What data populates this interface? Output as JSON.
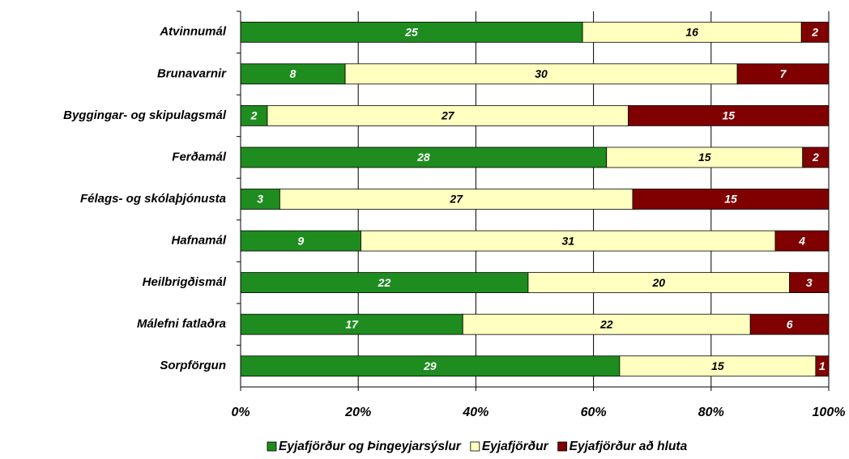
{
  "chart_data": {
    "type": "bar",
    "orientation": "horizontal",
    "stacking": "percent",
    "categories": [
      "Atvinnumál",
      "Brunavarnir",
      "Byggingar- og skipulagsmál",
      "Ferðamál",
      "Félags- og skólaþjónusta",
      "Hafnamál",
      "Heilbrigðismál",
      "Málefni fatlaðra",
      "Sorpförgun"
    ],
    "series": [
      {
        "name": "Eyjafjörður og Þingeyjarsýslur",
        "color": "#1e8c1e",
        "label_color": "#ffffff",
        "values": [
          25,
          8,
          2,
          28,
          3,
          9,
          22,
          17,
          29
        ]
      },
      {
        "name": "Eyjafjörður",
        "color": "#ffffc0",
        "label_color": "#000000",
        "values": [
          16,
          30,
          27,
          15,
          27,
          31,
          20,
          22,
          15
        ]
      },
      {
        "name": "Eyjafjörður að hluta",
        "color": "#800000",
        "label_color": "#ffffff",
        "values": [
          2,
          7,
          15,
          2,
          15,
          4,
          3,
          6,
          1
        ]
      }
    ],
    "xlim": [
      0,
      100
    ],
    "xticks": [
      {
        "value": 0,
        "label": "0%"
      },
      {
        "value": 20,
        "label": "20%"
      },
      {
        "value": 40,
        "label": "40%"
      },
      {
        "value": 60,
        "label": "60%"
      },
      {
        "value": 80,
        "label": "80%"
      },
      {
        "value": 100,
        "label": "100%"
      }
    ],
    "grid": true,
    "legend": "bottom"
  }
}
